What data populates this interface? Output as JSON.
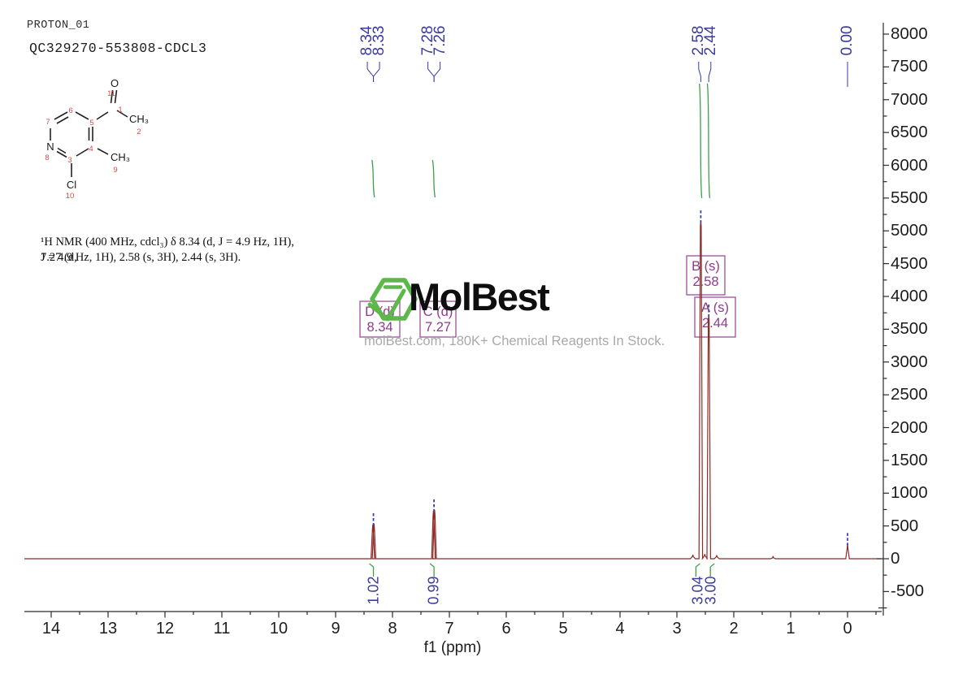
{
  "header": {
    "line1": "PROTON_01",
    "line2": "QC329270-553808-CDCL3"
  },
  "citation": {
    "line1": "¹H NMR (400 MHz, cdcl₃) δ 8.34 (d, J = 4.9 Hz, 1H), 7.27 (d,",
    "line2": "J = 4.9 Hz, 1H), 2.58 (s, 3H), 2.44 (s, 3H)."
  },
  "molecule": {
    "atoms": {
      "o": "O",
      "n": "N",
      "cl": "Cl",
      "acetyl_ch3": "CH₃",
      "ring_ch3": "CH₃"
    },
    "numbers": {
      "n1": "1",
      "n2": "2",
      "n3": "3",
      "n4": "4",
      "n5": "5",
      "n6": "6",
      "n7": "7",
      "n8": "8",
      "n9": "9",
      "n10": "10",
      "n11": "11"
    }
  },
  "watermark": {
    "brand": "MolBest",
    "tagline": "molBest.com, 180K+ Chemical Reagents In Stock."
  },
  "chart_data": {
    "type": "line",
    "xlabel": "f1 (ppm)",
    "xlim": [
      14.47,
      -0.6
    ],
    "ylim": [
      -500,
      8000
    ],
    "x_ticks": [
      14,
      13,
      12,
      11,
      10,
      9,
      8,
      7,
      6,
      5,
      4,
      3,
      2,
      1,
      0
    ],
    "y_ticks": [
      8000,
      7500,
      7000,
      6500,
      6000,
      5500,
      5000,
      4500,
      4000,
      3500,
      3000,
      2500,
      2000,
      1500,
      1000,
      500,
      0,
      -500
    ],
    "colors": {
      "spectrum": "#8e2a28",
      "integral": "#3f9e46",
      "annotation": "#9c4f9c",
      "peak_label": "#3a3aa0",
      "axis": "#2a2a2a",
      "logo_green": "#5cb848",
      "tagline_grey": "#a9a9a9",
      "structure_number_red": "#d84a4a"
    },
    "peaks": [
      {
        "ppm": 8.345,
        "intensity": 520
      },
      {
        "ppm": 8.325,
        "intensity": 532
      },
      {
        "ppm": 7.28,
        "intensity": 728
      },
      {
        "ppm": 7.26,
        "intensity": 745
      },
      {
        "ppm": 2.72,
        "intensity": 60
      },
      {
        "ppm": 2.58,
        "intensity": 5150
      },
      {
        "ppm": 2.51,
        "intensity": 70
      },
      {
        "ppm": 2.44,
        "intensity": 3715
      },
      {
        "ppm": 2.3,
        "intensity": 55
      },
      {
        "ppm": 1.31,
        "intensity": 40
      },
      {
        "ppm": 0.0,
        "intensity": 230
      }
    ],
    "peak_top_markers": [
      8.335,
      7.27,
      2.58,
      2.44,
      0.0
    ],
    "peak_label_groups": [
      {
        "entries": [
          {
            "label": "8.34",
            "target_ppm": 8.335
          },
          {
            "label": "8.33",
            "target_ppm": 8.335
          }
        ]
      },
      {
        "entries": [
          {
            "label": "7.28",
            "target_ppm": 7.27
          },
          {
            "label": "7.26",
            "target_ppm": 7.27
          }
        ]
      },
      {
        "entries": [
          {
            "label": "2.58",
            "target_ppm": 2.58
          },
          {
            "label": "2.44",
            "target_ppm": 2.44
          }
        ]
      },
      {
        "entries": [
          {
            "label": "0.00",
            "target_ppm": 0.0
          }
        ]
      }
    ],
    "integrals": [
      {
        "value": "1.02",
        "ppm": 8.335,
        "curve_span": [
          5510,
          6080
        ],
        "hook_dir": -1
      },
      {
        "value": "0.99",
        "ppm": 7.27,
        "curve_span": [
          5510,
          6080
        ],
        "hook_dir": -1
      },
      {
        "value": "3.04",
        "ppm": 2.58,
        "curve_span": [
          5500,
          7245
        ],
        "hook_dir": 1
      },
      {
        "value": "3.00",
        "ppm": 2.44,
        "curve_span": [
          5500,
          7245
        ],
        "hook_dir": 1
      }
    ],
    "multiplets": [
      {
        "name": "D (d)",
        "shift": "8.34",
        "ppm": 8.34
      },
      {
        "name": "C (d)",
        "shift": "7.27",
        "ppm": 7.27
      },
      {
        "name": "B (s)",
        "shift": "2.58",
        "ppm": 2.58
      },
      {
        "name": "A (s)",
        "shift": "2.44",
        "ppm": 2.44
      }
    ]
  }
}
